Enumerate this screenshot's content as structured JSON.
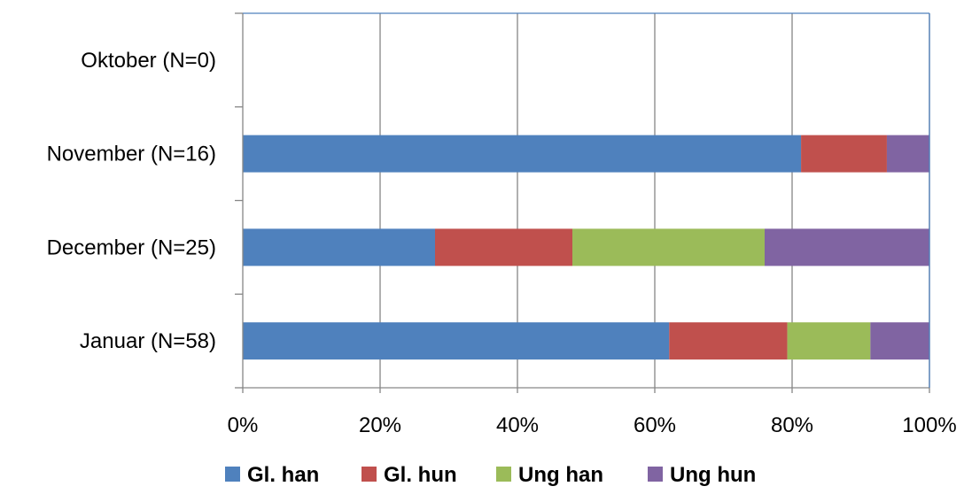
{
  "chart_data": {
    "type": "bar",
    "orientation": "horizontal",
    "stacked": "percent",
    "categories": [
      "Oktober (N=0)",
      "November (N=16)",
      "December (N=25)",
      "Januar (N=58)"
    ],
    "series": [
      {
        "name": "Gl. han",
        "color": "#4f81bd",
        "values": [
          0,
          81.3,
          28,
          62.1
        ]
      },
      {
        "name": "Gl. hun",
        "color": "#c0504d",
        "values": [
          0,
          12.5,
          20,
          17.2
        ]
      },
      {
        "name": "Ung han",
        "color": "#9bbb59",
        "values": [
          0,
          0,
          28,
          12.1
        ]
      },
      {
        "name": "Ung hun",
        "color": "#8064a2",
        "values": [
          0,
          6.2,
          24,
          8.6
        ]
      }
    ],
    "x_ticks": [
      "0%",
      "20%",
      "40%",
      "60%",
      "80%",
      "100%"
    ],
    "xlim": [
      0,
      100
    ],
    "grid": "vertical",
    "legend_position": "bottom",
    "title": "",
    "xlabel": "",
    "ylabel": ""
  }
}
